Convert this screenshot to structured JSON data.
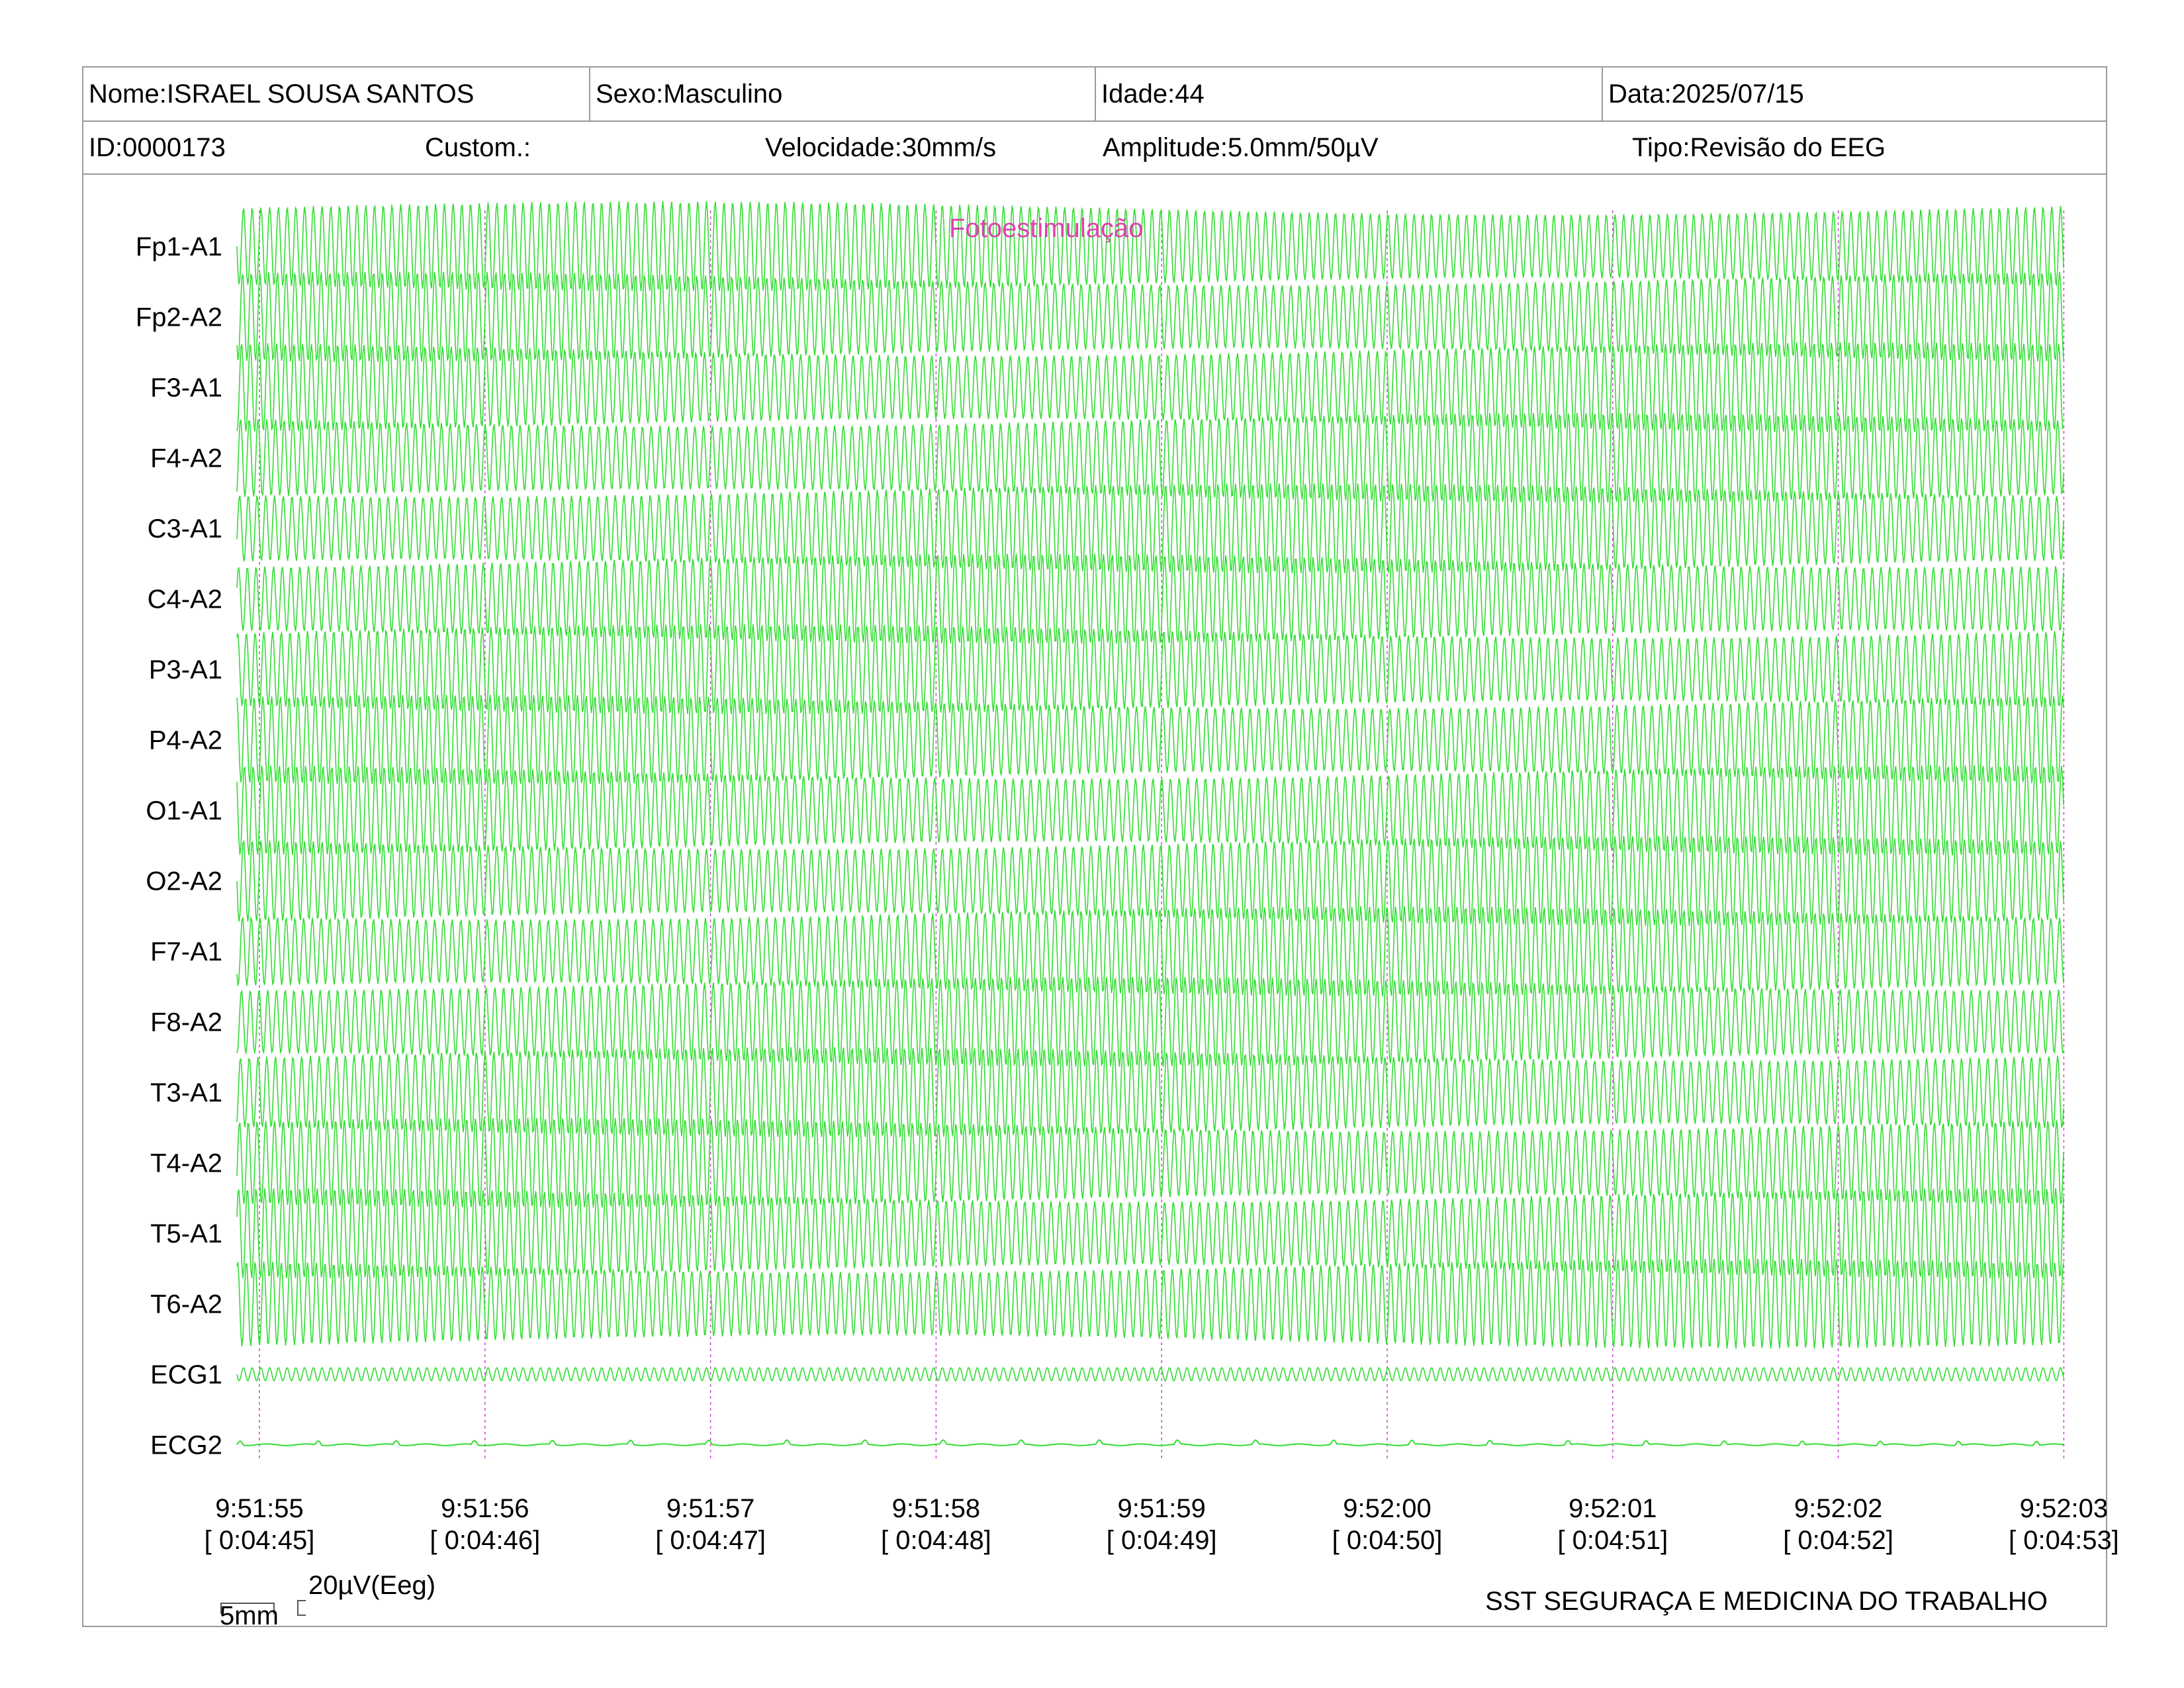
{
  "header": {
    "name": "Nome:ISRAEL SOUSA SANTOS",
    "sex": "Sexo:Masculino",
    "age": "Idade:44",
    "date": "Data:2025/07/15",
    "id": "ID:0000173",
    "custom": "Custom.:",
    "speed": "Velocidade:30mm/s",
    "amplitude": "Amplitude:5.0mm/50µV",
    "type": "Tipo:Revisão do EEG"
  },
  "channels": [
    "Fp1-A1",
    "Fp2-A2",
    "F3-A1",
    "F4-A2",
    "C3-A1",
    "C4-A2",
    "P3-A1",
    "P4-A2",
    "O1-A1",
    "O2-A2",
    "F7-A1",
    "F8-A2",
    "T3-A1",
    "T4-A2",
    "T5-A1",
    "T6-A2",
    "ECG1",
    "ECG2"
  ],
  "annotation": "Fotoestimulação",
  "time_marks": [
    {
      "clock": "9:51:55",
      "elapsed": "[ 0:04:45]"
    },
    {
      "clock": "9:51:56",
      "elapsed": "[ 0:04:46]"
    },
    {
      "clock": "9:51:57",
      "elapsed": "[ 0:04:47]"
    },
    {
      "clock": "9:51:58",
      "elapsed": "[ 0:04:48]"
    },
    {
      "clock": "9:51:59",
      "elapsed": "[ 0:04:49]"
    },
    {
      "clock": "9:52:00",
      "elapsed": "[ 0:04:50]"
    },
    {
      "clock": "9:52:01",
      "elapsed": "[ 0:04:51]"
    },
    {
      "clock": "9:52:02",
      "elapsed": "[ 0:04:52]"
    },
    {
      "clock": "9:52:03",
      "elapsed": "[ 0:04:53]"
    }
  ],
  "scale": {
    "time": "5mm",
    "amplitude": "20µV(Eeg)"
  },
  "footer": "SST SEGURAÇA E MEDICINA DO TRABALHO",
  "colors": {
    "trace": "#33dd33",
    "marker": "#cc44cc",
    "annotation": "#e040b0",
    "border": "#9a9a9a"
  }
}
